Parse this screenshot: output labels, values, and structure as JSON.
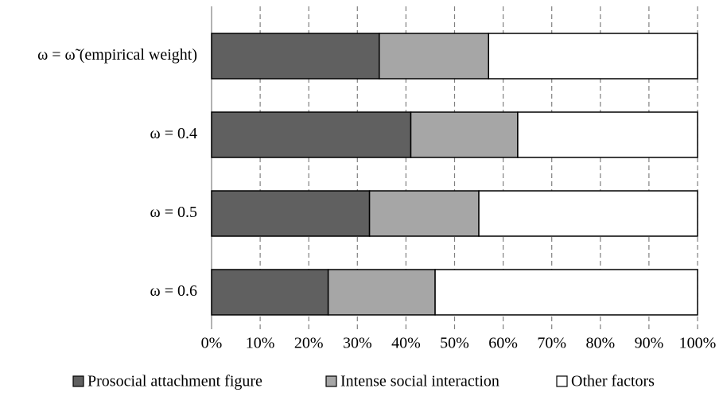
{
  "chart_data": {
    "type": "stacked-bar-horizontal",
    "categories": [
      "ω = ω̃ (empirical weight)",
      "ω = 0.4",
      "ω = 0.5",
      "ω = 0.6"
    ],
    "series": [
      {
        "name": "Prosocial attachment figure",
        "color": "#606060",
        "values": [
          34.5,
          41,
          32.5,
          24
        ]
      },
      {
        "name": "Intense social interaction",
        "color": "#a6a6a6",
        "values": [
          22.5,
          22,
          22.5,
          22
        ]
      },
      {
        "name": "Other factors",
        "color": "#ffffff",
        "values": [
          43,
          37,
          45,
          54
        ]
      }
    ],
    "xlim": [
      0,
      100
    ],
    "xticks": [
      {
        "value": 0,
        "label": "0%"
      },
      {
        "value": 10,
        "label": "10%"
      },
      {
        "value": 20,
        "label": "20%"
      },
      {
        "value": 30,
        "label": "30%"
      },
      {
        "value": 40,
        "label": "40%"
      },
      {
        "value": 50,
        "label": "50%"
      },
      {
        "value": 60,
        "label": "60%"
      },
      {
        "value": 70,
        "label": "70%"
      },
      {
        "value": 80,
        "label": "80%"
      },
      {
        "value": 90,
        "label": "90%"
      },
      {
        "value": 100,
        "label": "100%"
      }
    ],
    "grid": true,
    "legend": "bottom"
  }
}
